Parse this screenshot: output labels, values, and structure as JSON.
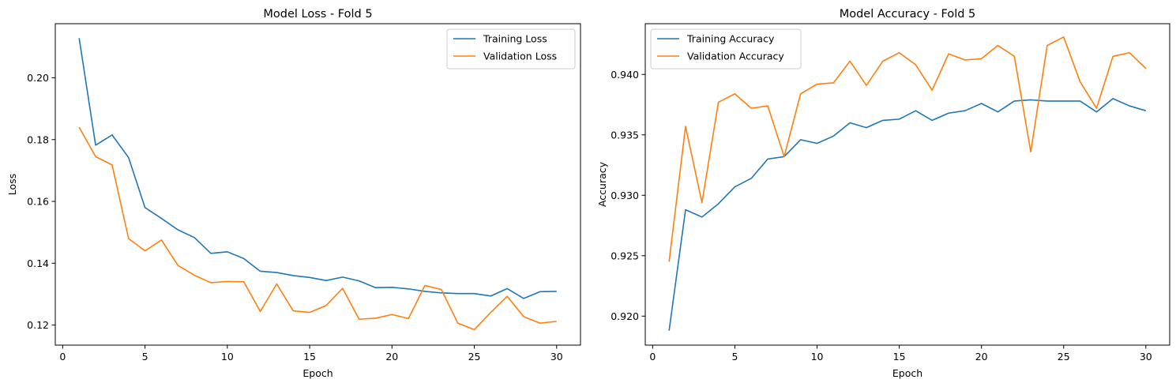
{
  "chart_data": [
    {
      "type": "line",
      "title": "Model Loss - Fold 5",
      "xlabel": "Epoch",
      "ylabel": "Loss",
      "xlim": [
        -0.45,
        31.45
      ],
      "ylim": [
        0.1135,
        0.2175
      ],
      "xticks": [
        0,
        5,
        10,
        15,
        20,
        25,
        30
      ],
      "yticks": [
        0.12,
        0.14,
        0.16,
        0.18,
        0.2
      ],
      "ytick_labels": [
        "0.12",
        "0.14",
        "0.16",
        "0.18",
        "0.20"
      ],
      "legend_position": "upper right",
      "x": [
        1,
        2,
        3,
        4,
        5,
        6,
        7,
        8,
        9,
        10,
        11,
        12,
        13,
        14,
        15,
        16,
        17,
        18,
        19,
        20,
        21,
        22,
        23,
        24,
        25,
        26,
        27,
        28,
        29,
        30
      ],
      "series": [
        {
          "name": "Training Loss",
          "color": "#1f77b4",
          "values": [
            0.2128,
            0.1782,
            0.1815,
            0.1742,
            0.158,
            0.1545,
            0.1508,
            0.1483,
            0.1432,
            0.1437,
            0.1415,
            0.1374,
            0.137,
            0.136,
            0.1354,
            0.1344,
            0.1355,
            0.1343,
            0.1321,
            0.1322,
            0.1317,
            0.1309,
            0.1304,
            0.1302,
            0.1302,
            0.1294,
            0.1318,
            0.1286,
            0.1308,
            0.1309
          ]
        },
        {
          "name": "Validation Loss",
          "color": "#ff7f0e",
          "values": [
            0.184,
            0.1745,
            0.1718,
            0.148,
            0.144,
            0.1475,
            0.1393,
            0.1361,
            0.1337,
            0.1341,
            0.134,
            0.1244,
            0.1333,
            0.1246,
            0.1241,
            0.1263,
            0.1319,
            0.1219,
            0.1222,
            0.1234,
            0.1221,
            0.1328,
            0.1315,
            0.1206,
            0.1185,
            0.1241,
            0.1293,
            0.1227,
            0.1206,
            0.1212
          ]
        }
      ]
    },
    {
      "type": "line",
      "title": "Model Accuracy - Fold 5",
      "xlabel": "Epoch",
      "ylabel": "Accuracy",
      "xlim": [
        -0.45,
        31.45
      ],
      "ylim": [
        0.9176,
        0.9442
      ],
      "xticks": [
        0,
        5,
        10,
        15,
        20,
        25,
        30
      ],
      "yticks": [
        0.92,
        0.925,
        0.93,
        0.935,
        0.94
      ],
      "ytick_labels": [
        "0.920",
        "0.925",
        "0.930",
        "0.935",
        "0.940"
      ],
      "legend_position": "upper left",
      "x": [
        1,
        2,
        3,
        4,
        5,
        6,
        7,
        8,
        9,
        10,
        11,
        12,
        13,
        14,
        15,
        16,
        17,
        18,
        19,
        20,
        21,
        22,
        23,
        24,
        25,
        26,
        27,
        28,
        29,
        30
      ],
      "series": [
        {
          "name": "Training Accuracy",
          "color": "#1f77b4",
          "values": [
            0.9188,
            0.9288,
            0.9282,
            0.9293,
            0.9307,
            0.9314,
            0.933,
            0.9332,
            0.9346,
            0.9343,
            0.9349,
            0.936,
            0.9356,
            0.9362,
            0.9363,
            0.937,
            0.9362,
            0.9368,
            0.937,
            0.9376,
            0.9369,
            0.9378,
            0.9379,
            0.9378,
            0.9378,
            0.9378,
            0.9369,
            0.938,
            0.9374,
            0.937
          ]
        },
        {
          "name": "Validation Accuracy",
          "color": "#ff7f0e",
          "values": [
            0.9245,
            0.9357,
            0.9294,
            0.9377,
            0.9384,
            0.9372,
            0.9374,
            0.9332,
            0.9384,
            0.9392,
            0.9393,
            0.9411,
            0.9391,
            0.9411,
            0.9418,
            0.9408,
            0.9387,
            0.9417,
            0.9412,
            0.9413,
            0.9424,
            0.9415,
            0.9336,
            0.9424,
            0.9431,
            0.9394,
            0.9372,
            0.9415,
            0.9418,
            0.9405
          ]
        }
      ]
    }
  ]
}
